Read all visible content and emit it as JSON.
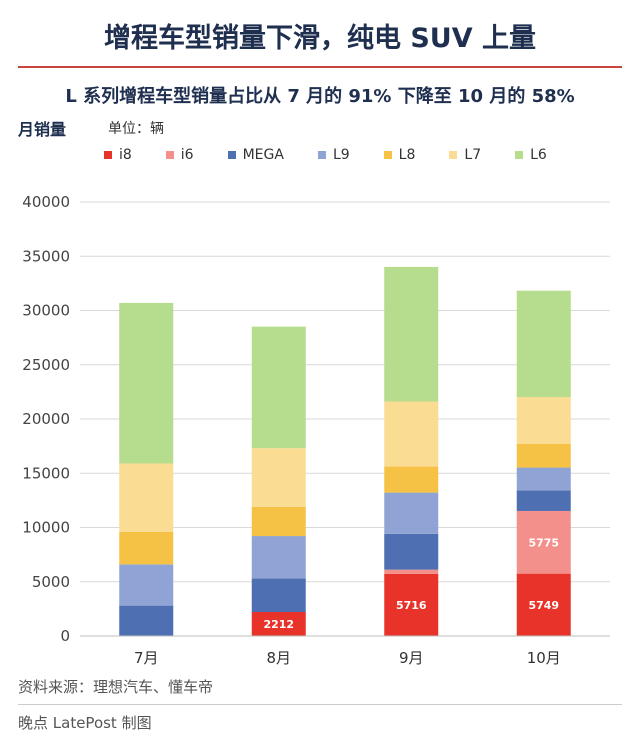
{
  "header": {
    "title": "增程车型销量下滑，纯电 SUV 上量",
    "subtitle": "L 系列增程车型销量占比从 7 月的 91% 下降至 10 月的 58%"
  },
  "axis_caption": {
    "ylabel": "月销量",
    "unit": "单位：辆"
  },
  "legend": [
    {
      "name": "i8",
      "color": "#e8332a"
    },
    {
      "name": "i6",
      "color": "#f4908c"
    },
    {
      "name": "MEGA",
      "color": "#4f6fb3"
    },
    {
      "name": "L9",
      "color": "#8fa4d4"
    },
    {
      "name": "L8",
      "color": "#f6c245"
    },
    {
      "name": "L7",
      "color": "#fbdc93"
    },
    {
      "name": "L6",
      "color": "#b6dc8e"
    }
  ],
  "chart_data": {
    "type": "bar",
    "stacked": true,
    "categories": [
      "7月",
      "8月",
      "9月",
      "10月"
    ],
    "ylim": [
      0,
      40000
    ],
    "yticks": [
      0,
      5000,
      10000,
      15000,
      20000,
      25000,
      30000,
      35000,
      40000
    ],
    "grid": true,
    "legend_position": "top",
    "series": [
      {
        "name": "i8",
        "color": "#e8332a",
        "values": [
          0,
          2212,
          5716,
          5749
        ],
        "labels": [
          null,
          "2212",
          "5716",
          "5749"
        ]
      },
      {
        "name": "i6",
        "color": "#f4908c",
        "values": [
          0,
          0,
          400,
          5775
        ],
        "labels": [
          null,
          null,
          null,
          "5775"
        ]
      },
      {
        "name": "MEGA",
        "color": "#4f6fb3",
        "values": [
          2800,
          3100,
          3300,
          1900
        ],
        "labels": [
          null,
          null,
          null,
          null
        ]
      },
      {
        "name": "L9",
        "color": "#8fa4d4",
        "values": [
          3800,
          3900,
          3800,
          2100
        ],
        "labels": [
          null,
          null,
          null,
          null
        ]
      },
      {
        "name": "L8",
        "color": "#f6c245",
        "values": [
          3000,
          2700,
          2400,
          2200
        ],
        "labels": [
          null,
          null,
          null,
          null
        ]
      },
      {
        "name": "L7",
        "color": "#fbdc93",
        "values": [
          6300,
          5400,
          6000,
          4300
        ],
        "labels": [
          null,
          null,
          null,
          null
        ]
      },
      {
        "name": "L6",
        "color": "#b6dc8e",
        "values": [
          14800,
          11200,
          12400,
          9800
        ],
        "labels": [
          null,
          null,
          null,
          null
        ]
      }
    ]
  },
  "footer": {
    "source": "资料来源：理想汽车、懂车帝",
    "credit": "晚点 LatePost 制图"
  }
}
